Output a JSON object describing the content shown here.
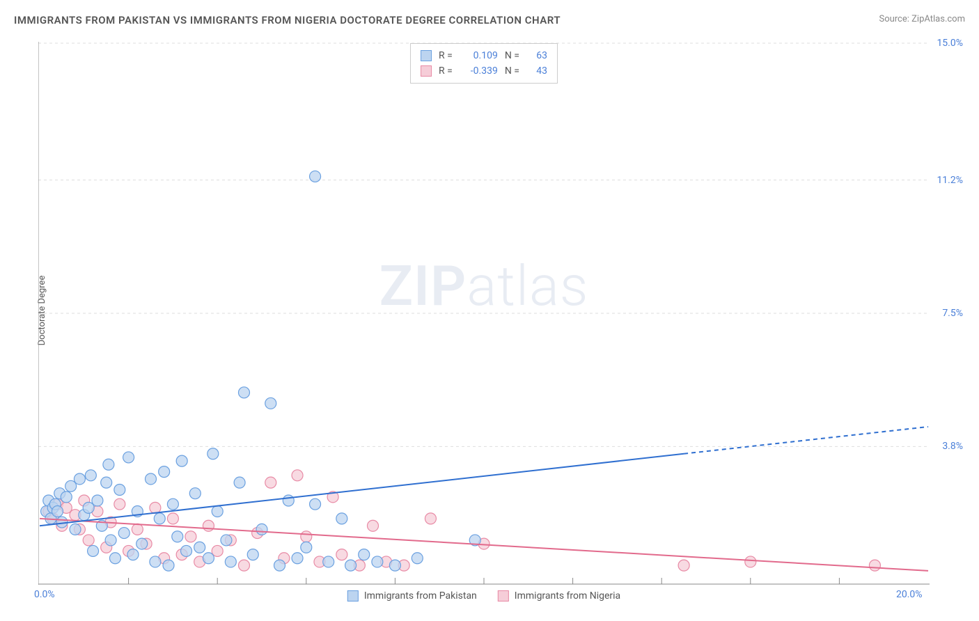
{
  "title": "IMMIGRANTS FROM PAKISTAN VS IMMIGRANTS FROM NIGERIA DOCTORATE DEGREE CORRELATION CHART",
  "source_prefix": "Source: ",
  "source": "ZipAtlas.com",
  "y_axis_label": "Doctorate Degree",
  "watermark": {
    "bold": "ZIP",
    "rest": "atlas"
  },
  "chart": {
    "type": "scatter",
    "xlim": [
      0,
      20
    ],
    "ylim": [
      0,
      15
    ],
    "background_color": "#ffffff",
    "grid_color": "#dddddd",
    "axis_color": "#888888",
    "x_ticks": [
      0,
      20
    ],
    "x_tick_labels": [
      "0.0%",
      "20.0%"
    ],
    "x_minor_ticks": [
      2,
      4,
      6,
      8,
      10,
      12,
      14,
      16,
      18
    ],
    "y_ticks": [
      3.8,
      7.5,
      11.2,
      15.0
    ],
    "y_tick_labels": [
      "3.8%",
      "7.5%",
      "11.2%",
      "15.0%"
    ],
    "series": [
      {
        "name": "Immigrants from Pakistan",
        "color_fill": "#bcd4f0",
        "color_stroke": "#6aa0e0",
        "trend_color": "#2f6fd0",
        "trend_width": 2,
        "R": "0.109",
        "N": "63",
        "trend": {
          "x1": 0,
          "y1": 1.6,
          "x2": 14.5,
          "y2": 3.6,
          "dash_from_x": 14.5,
          "dash_to_x": 20,
          "dash_to_y": 4.35
        },
        "marker_radius": 8,
        "points": [
          [
            0.15,
            2.0
          ],
          [
            0.2,
            2.3
          ],
          [
            0.25,
            1.8
          ],
          [
            0.3,
            2.1
          ],
          [
            0.35,
            2.2
          ],
          [
            0.4,
            2.0
          ],
          [
            0.45,
            2.5
          ],
          [
            0.5,
            1.7
          ],
          [
            0.6,
            2.4
          ],
          [
            0.7,
            2.7
          ],
          [
            0.8,
            1.5
          ],
          [
            0.9,
            2.9
          ],
          [
            1.0,
            1.9
          ],
          [
            1.1,
            2.1
          ],
          [
            1.15,
            3.0
          ],
          [
            1.2,
            0.9
          ],
          [
            1.3,
            2.3
          ],
          [
            1.4,
            1.6
          ],
          [
            1.5,
            2.8
          ],
          [
            1.55,
            3.3
          ],
          [
            1.6,
            1.2
          ],
          [
            1.7,
            0.7
          ],
          [
            1.8,
            2.6
          ],
          [
            1.9,
            1.4
          ],
          [
            2.0,
            3.5
          ],
          [
            2.1,
            0.8
          ],
          [
            2.2,
            2.0
          ],
          [
            2.3,
            1.1
          ],
          [
            2.5,
            2.9
          ],
          [
            2.6,
            0.6
          ],
          [
            2.7,
            1.8
          ],
          [
            2.8,
            3.1
          ],
          [
            2.9,
            0.5
          ],
          [
            3.0,
            2.2
          ],
          [
            3.1,
            1.3
          ],
          [
            3.2,
            3.4
          ],
          [
            3.3,
            0.9
          ],
          [
            3.5,
            2.5
          ],
          [
            3.6,
            1.0
          ],
          [
            3.8,
            0.7
          ],
          [
            3.9,
            3.6
          ],
          [
            4.0,
            2.0
          ],
          [
            4.2,
            1.2
          ],
          [
            4.3,
            0.6
          ],
          [
            4.5,
            2.8
          ],
          [
            4.6,
            5.3
          ],
          [
            4.8,
            0.8
          ],
          [
            5.0,
            1.5
          ],
          [
            5.2,
            5.0
          ],
          [
            5.4,
            0.5
          ],
          [
            5.6,
            2.3
          ],
          [
            5.8,
            0.7
          ],
          [
            6.0,
            1.0
          ],
          [
            6.2,
            2.2
          ],
          [
            6.2,
            11.3
          ],
          [
            6.5,
            0.6
          ],
          [
            6.8,
            1.8
          ],
          [
            7.0,
            0.5
          ],
          [
            7.3,
            0.8
          ],
          [
            7.6,
            0.6
          ],
          [
            8.0,
            0.5
          ],
          [
            8.5,
            0.7
          ],
          [
            9.8,
            1.2
          ]
        ]
      },
      {
        "name": "Immigrants from Nigeria",
        "color_fill": "#f6cdd8",
        "color_stroke": "#e88aa5",
        "trend_color": "#e26a8c",
        "trend_width": 2,
        "R": "-0.339",
        "N": "43",
        "trend": {
          "x1": 0,
          "y1": 1.8,
          "x2": 20,
          "y2": 0.35
        },
        "marker_radius": 8,
        "points": [
          [
            0.2,
            2.0
          ],
          [
            0.3,
            1.8
          ],
          [
            0.4,
            2.2
          ],
          [
            0.5,
            1.6
          ],
          [
            0.6,
            2.1
          ],
          [
            0.8,
            1.9
          ],
          [
            0.9,
            1.5
          ],
          [
            1.0,
            2.3
          ],
          [
            1.1,
            1.2
          ],
          [
            1.3,
            2.0
          ],
          [
            1.5,
            1.0
          ],
          [
            1.6,
            1.7
          ],
          [
            1.8,
            2.2
          ],
          [
            2.0,
            0.9
          ],
          [
            2.2,
            1.5
          ],
          [
            2.4,
            1.1
          ],
          [
            2.6,
            2.1
          ],
          [
            2.8,
            0.7
          ],
          [
            3.0,
            1.8
          ],
          [
            3.2,
            0.8
          ],
          [
            3.4,
            1.3
          ],
          [
            3.6,
            0.6
          ],
          [
            3.8,
            1.6
          ],
          [
            4.0,
            0.9
          ],
          [
            4.3,
            1.2
          ],
          [
            4.6,
            0.5
          ],
          [
            4.9,
            1.4
          ],
          [
            5.2,
            2.8
          ],
          [
            5.5,
            0.7
          ],
          [
            5.8,
            3.0
          ],
          [
            6.0,
            1.3
          ],
          [
            6.3,
            0.6
          ],
          [
            6.6,
            2.4
          ],
          [
            6.8,
            0.8
          ],
          [
            7.2,
            0.5
          ],
          [
            7.5,
            1.6
          ],
          [
            7.8,
            0.6
          ],
          [
            8.2,
            0.5
          ],
          [
            8.8,
            1.8
          ],
          [
            10.0,
            1.1
          ],
          [
            14.5,
            0.5
          ],
          [
            16.0,
            0.6
          ],
          [
            18.8,
            0.5
          ]
        ]
      }
    ]
  },
  "legend_top": {
    "R_label": "R =",
    "N_label": "N ="
  }
}
